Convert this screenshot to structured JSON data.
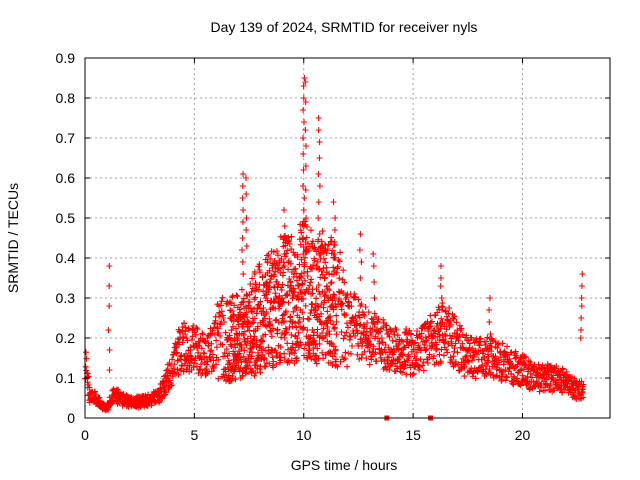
{
  "chart_data": {
    "type": "scatter",
    "title": "Day 139 of 2024, SRMTID for receiver nyls",
    "xlabel": "GPS time / hours",
    "ylabel": "SRMTID / TECUs",
    "xlim": [
      0,
      24
    ],
    "ylim": [
      0,
      0.9
    ],
    "xticks": [
      0,
      5,
      10,
      15,
      20
    ],
    "yticks": [
      0,
      0.1,
      0.2,
      0.3,
      0.4,
      0.5,
      0.6,
      0.7,
      0.8,
      0.9
    ],
    "grid": true,
    "marker": "plus",
    "color": "#ff0000",
    "trend": [
      [
        0.0,
        0.15
      ],
      [
        0.2,
        0.06
      ],
      [
        0.5,
        0.05
      ],
      [
        0.8,
        0.03
      ],
      [
        1.0,
        0.025
      ],
      [
        1.3,
        0.06
      ],
      [
        1.6,
        0.05
      ],
      [
        2.0,
        0.04
      ],
      [
        2.5,
        0.04
      ],
      [
        3.0,
        0.045
      ],
      [
        3.4,
        0.06
      ],
      [
        3.8,
        0.1
      ],
      [
        4.2,
        0.16
      ],
      [
        4.6,
        0.18
      ],
      [
        5.0,
        0.17
      ],
      [
        5.5,
        0.16
      ],
      [
        6.0,
        0.19
      ],
      [
        6.5,
        0.2
      ],
      [
        7.0,
        0.2
      ],
      [
        7.5,
        0.22
      ],
      [
        8.0,
        0.25
      ],
      [
        8.5,
        0.27
      ],
      [
        9.0,
        0.3
      ],
      [
        9.5,
        0.3
      ],
      [
        10.0,
        0.32
      ],
      [
        10.5,
        0.3
      ],
      [
        11.0,
        0.31
      ],
      [
        11.5,
        0.28
      ],
      [
        12.0,
        0.25
      ],
      [
        12.5,
        0.22
      ],
      [
        13.0,
        0.2
      ],
      [
        13.5,
        0.19
      ],
      [
        14.0,
        0.17
      ],
      [
        14.5,
        0.17
      ],
      [
        15.0,
        0.16
      ],
      [
        15.5,
        0.18
      ],
      [
        16.0,
        0.2
      ],
      [
        16.5,
        0.22
      ],
      [
        17.0,
        0.18
      ],
      [
        17.5,
        0.15
      ],
      [
        18.0,
        0.15
      ],
      [
        18.5,
        0.15
      ],
      [
        19.0,
        0.14
      ],
      [
        19.5,
        0.13
      ],
      [
        20.0,
        0.12
      ],
      [
        20.5,
        0.1
      ],
      [
        21.0,
        0.1
      ],
      [
        21.5,
        0.1
      ],
      [
        22.0,
        0.09
      ],
      [
        22.5,
        0.07
      ],
      [
        22.8,
        0.07
      ]
    ],
    "spikes": [
      {
        "x": 1.1,
        "values": [
          0.38,
          0.33,
          0.28,
          0.22,
          0.17,
          0.12
        ]
      },
      {
        "x": 7.2,
        "values": [
          0.61,
          0.58,
          0.55,
          0.52,
          0.49,
          0.45,
          0.42,
          0.39,
          0.36
        ]
      },
      {
        "x": 7.4,
        "values": [
          0.6,
          0.56,
          0.5,
          0.47,
          0.43
        ]
      },
      {
        "x": 9.1,
        "values": [
          0.52,
          0.48,
          0.45,
          0.41,
          0.38
        ]
      },
      {
        "x": 10.0,
        "values": [
          0.85,
          0.83,
          0.8,
          0.77,
          0.74,
          0.7,
          0.66,
          0.62,
          0.58,
          0.55,
          0.52,
          0.48,
          0.45,
          0.41
        ]
      },
      {
        "x": 10.1,
        "values": [
          0.84,
          0.79,
          0.72,
          0.68,
          0.63,
          0.57,
          0.5,
          0.44
        ]
      },
      {
        "x": 10.7,
        "values": [
          0.75,
          0.72,
          0.69,
          0.65,
          0.61,
          0.58,
          0.54,
          0.5,
          0.46,
          0.42
        ]
      },
      {
        "x": 11.4,
        "values": [
          0.54,
          0.5,
          0.47,
          0.44,
          0.4,
          0.36
        ]
      },
      {
        "x": 12.6,
        "values": [
          0.46,
          0.42,
          0.39,
          0.35
        ]
      },
      {
        "x": 13.2,
        "values": [
          0.41,
          0.38,
          0.34,
          0.3
        ]
      },
      {
        "x": 16.3,
        "values": [
          0.38,
          0.35,
          0.33,
          0.3,
          0.27,
          0.24
        ]
      },
      {
        "x": 18.5,
        "values": [
          0.3,
          0.27,
          0.24,
          0.21
        ]
      },
      {
        "x": 22.7,
        "values": [
          0.36,
          0.33,
          0.3,
          0.28,
          0.25,
          0.22,
          0.2
        ]
      }
    ],
    "baseline_markers": [
      13.8,
      15.8
    ]
  }
}
